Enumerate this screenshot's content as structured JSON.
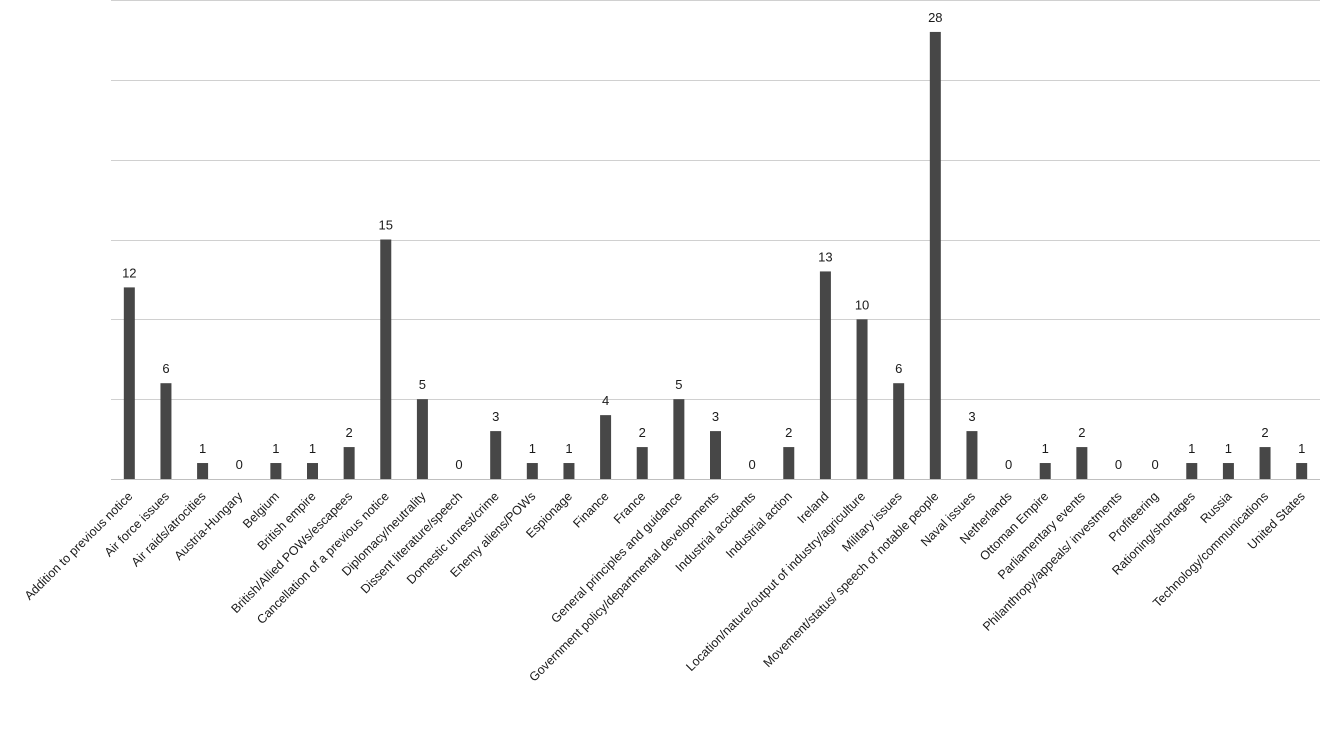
{
  "chart_data": {
    "type": "bar",
    "title": "",
    "xlabel": "",
    "ylabel": "",
    "ylim": [
      0,
      30
    ],
    "grid": true,
    "legend": "none",
    "bar_color": "#474747",
    "categories": [
      "Addition to previous notice",
      "Air force issues",
      "Air raids/atrocities",
      "Austria-Hungary",
      "Belgium",
      "British empire",
      "British/Allied POWs/escapees",
      "Cancellation of a previous notice",
      "Diplomacy/neutrality",
      "Dissent literature/speech",
      "Domestic unrest/crime",
      "Enemy aliens/POWs",
      "Espionage",
      "Finance",
      "France",
      "General principles and guidance",
      "Government policy/departmental developments",
      "Industrial accidents",
      "Industrial action",
      "Ireland",
      "Location/nature/output of industry/agriculture",
      "Military issues",
      "Movement/status/ speech of notable people",
      "Naval issues",
      "Netherlands",
      "Ottoman Empire",
      "Parliamentary events",
      "Philanthropy/appeals/ investments",
      "Profiteering",
      "Rationing/shortages",
      "Russia",
      "Technology/communications",
      "United States"
    ],
    "values": [
      12,
      6,
      1,
      0,
      1,
      1,
      2,
      15,
      5,
      0,
      3,
      1,
      1,
      4,
      2,
      5,
      3,
      0,
      2,
      13,
      10,
      6,
      28,
      3,
      0,
      1,
      2,
      0,
      0,
      1,
      1,
      2,
      1
    ],
    "value_labels": [
      "12",
      "6",
      "1",
      "0",
      "1",
      "1",
      "2",
      "15",
      "5",
      "0",
      "3",
      "1",
      "1",
      "4",
      "2",
      "5",
      "3",
      "0",
      "2",
      "13",
      "10",
      "6",
      "28",
      "3",
      "0",
      "1",
      "2",
      "0",
      "0",
      "1",
      "1",
      "2",
      "1"
    ]
  }
}
